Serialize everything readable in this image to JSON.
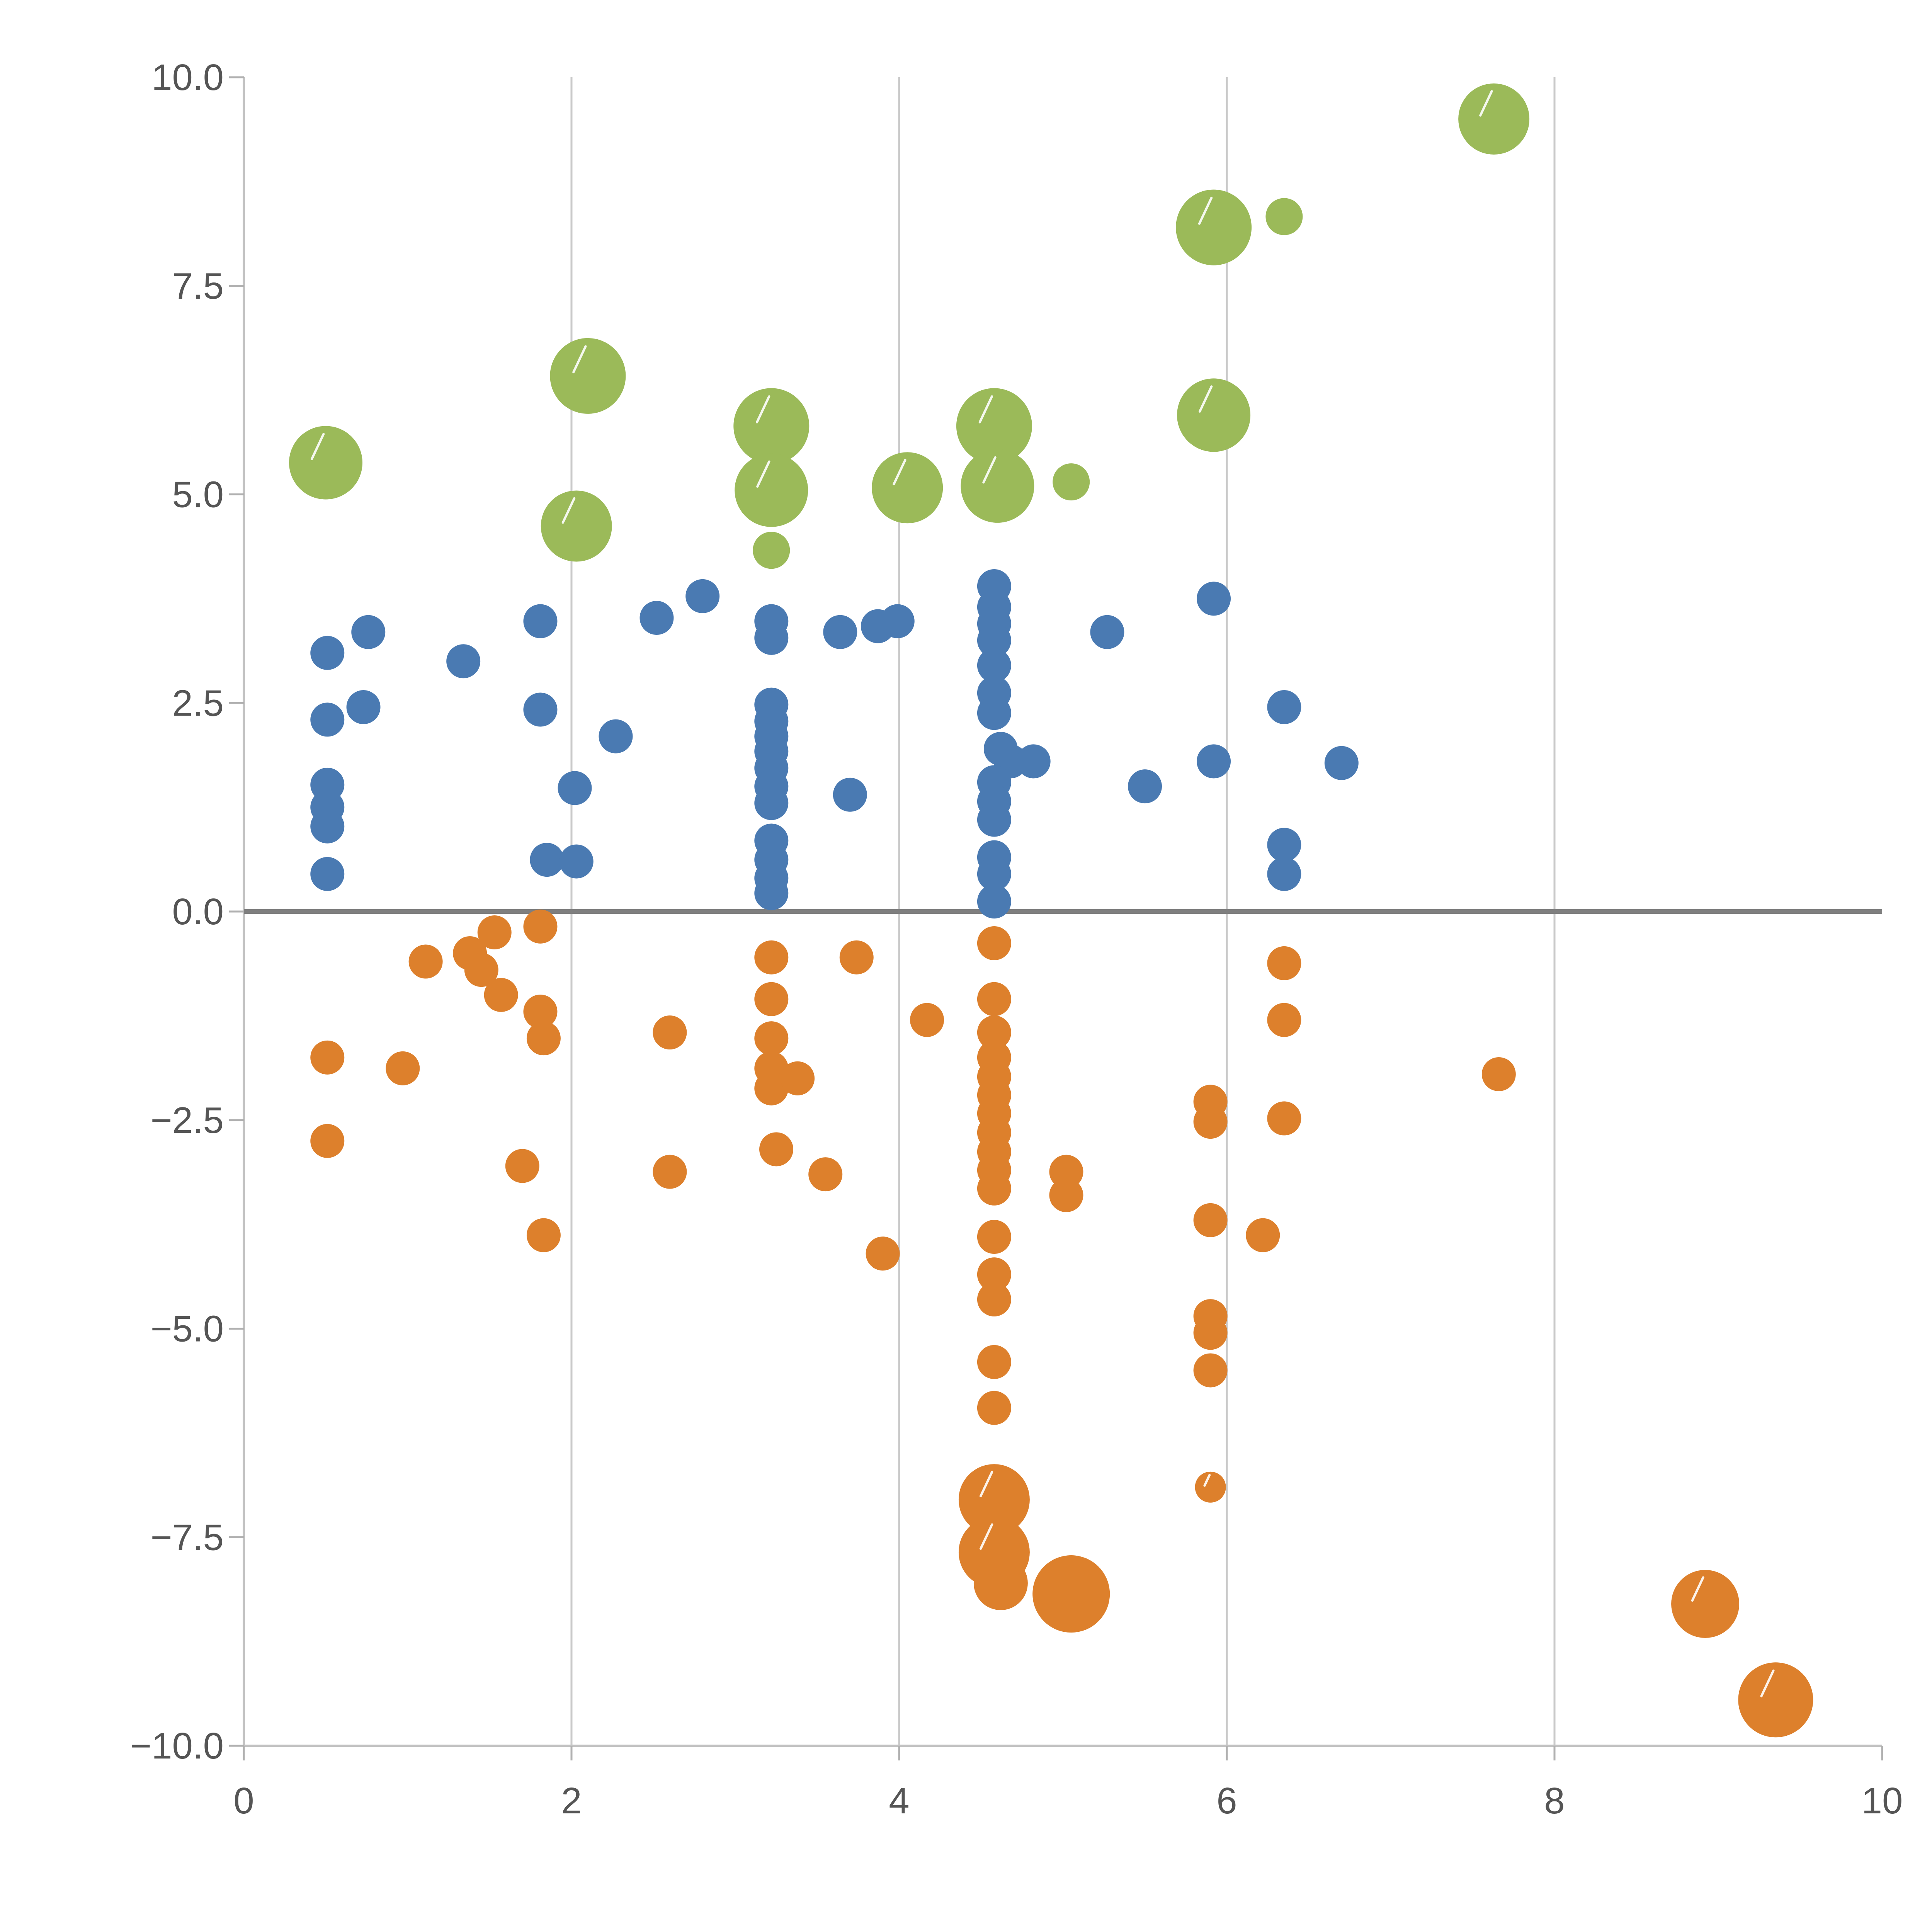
{
  "chart_data": {
    "type": "scatter",
    "title": "",
    "xlabel": "",
    "ylabel": "",
    "xlim": [
      0,
      10
    ],
    "ylim": [
      -10,
      10
    ],
    "grid": "vertical-only",
    "gridline_x_values": [
      2,
      4,
      6,
      8
    ],
    "zero_line": true,
    "legend": "none",
    "x_ticks": [
      0,
      2,
      4,
      6,
      8,
      10
    ],
    "x_tick_labels": [
      "0",
      "2",
      "4",
      "6",
      "8",
      "10"
    ],
    "y_ticks": [
      -10,
      -7.5,
      -5,
      -2.5,
      0,
      2.5,
      5,
      7.5,
      10
    ],
    "y_tick_labels": [
      "−10.0",
      "−7.5",
      "−5.0",
      "−2.5",
      "0.0",
      "2.5",
      "5.0",
      "7.5",
      "10.0"
    ],
    "colors": {
      "grid": "#c9c9c9",
      "spine": "#c2c2c2",
      "tick": "#b0b0b0",
      "zero_line": "#7f7f7f",
      "tick_label": "#555555",
      "highlight_slash": "#ffffff"
    },
    "points_format": "[x, y, radius_px_on_5000_canvas, slash_flag]",
    "series": [
      {
        "name": "green-bubbles",
        "color": "#9bba59",
        "default_radius": 46,
        "points": [
          [
            0.5,
            5.38,
            95,
            1
          ],
          [
            2.1,
            6.42,
            98,
            1
          ],
          [
            2.03,
            4.62,
            92,
            1
          ],
          [
            3.22,
            5.82,
            98,
            1
          ],
          [
            3.22,
            5.05,
            95,
            1
          ],
          [
            3.22,
            4.33,
            48,
            0
          ],
          [
            4.05,
            5.08,
            92,
            1
          ],
          [
            4.58,
            5.82,
            98,
            1
          ],
          [
            4.6,
            5.1,
            95,
            1
          ],
          [
            5.05,
            5.15,
            48,
            0
          ],
          [
            5.92,
            8.2,
            98,
            1
          ],
          [
            6.35,
            8.33,
            48,
            0
          ],
          [
            5.92,
            5.95,
            95,
            1
          ],
          [
            7.63,
            9.5,
            92,
            1
          ]
        ]
      },
      {
        "name": "blue-dots",
        "color": "#4a7ab2",
        "default_radius": 44,
        "points": [
          [
            0.51,
            3.1
          ],
          [
            0.51,
            2.3
          ],
          [
            0.76,
            3.35
          ],
          [
            0.73,
            2.45
          ],
          [
            0.51,
            1.52
          ],
          [
            0.51,
            1.25
          ],
          [
            0.51,
            1.02
          ],
          [
            0.51,
            0.45
          ],
          [
            1.34,
            3.0
          ],
          [
            1.81,
            3.48
          ],
          [
            1.81,
            2.42
          ],
          [
            2.02,
            1.48
          ],
          [
            1.85,
            0.62
          ],
          [
            2.03,
            0.6
          ],
          [
            2.27,
            2.1
          ],
          [
            2.52,
            3.52
          ],
          [
            2.8,
            3.78
          ],
          [
            3.22,
            3.48
          ],
          [
            3.22,
            3.28
          ],
          [
            3.22,
            2.48
          ],
          [
            3.22,
            2.28
          ],
          [
            3.22,
            2.1
          ],
          [
            3.22,
            1.92
          ],
          [
            3.22,
            1.72
          ],
          [
            3.22,
            1.5
          ],
          [
            3.22,
            1.3
          ],
          [
            3.22,
            0.85
          ],
          [
            3.22,
            0.62
          ],
          [
            3.22,
            0.4
          ],
          [
            3.22,
            0.22
          ],
          [
            3.64,
            3.35
          ],
          [
            3.7,
            1.4
          ],
          [
            3.87,
            3.42
          ],
          [
            3.99,
            3.48
          ],
          [
            4.58,
            3.9
          ],
          [
            4.58,
            3.65
          ],
          [
            4.58,
            3.45
          ],
          [
            4.58,
            3.25
          ],
          [
            4.58,
            2.95
          ],
          [
            4.58,
            2.62
          ],
          [
            4.58,
            2.38
          ],
          [
            4.62,
            1.95
          ],
          [
            4.68,
            1.8
          ],
          [
            4.58,
            1.55
          ],
          [
            4.58,
            1.32
          ],
          [
            4.58,
            1.1
          ],
          [
            4.58,
            0.65
          ],
          [
            4.58,
            0.45
          ],
          [
            4.58,
            0.12
          ],
          [
            4.82,
            1.8
          ],
          [
            5.27,
            3.35
          ],
          [
            5.5,
            1.5
          ],
          [
            5.92,
            3.75
          ],
          [
            5.92,
            1.8
          ],
          [
            6.35,
            2.45
          ],
          [
            6.35,
            0.8
          ],
          [
            6.35,
            0.45
          ],
          [
            6.7,
            1.78
          ]
        ]
      },
      {
        "name": "orange-dots",
        "color": "#dd802c",
        "default_radius": 44,
        "points": [
          [
            0.51,
            -1.75
          ],
          [
            0.51,
            -2.75
          ],
          [
            0.97,
            -1.88
          ],
          [
            1.11,
            -0.6
          ],
          [
            1.38,
            -0.5
          ],
          [
            1.45,
            -0.7
          ],
          [
            1.53,
            -0.25
          ],
          [
            1.57,
            -1.0
          ],
          [
            1.81,
            -0.18
          ],
          [
            1.81,
            -1.2
          ],
          [
            1.83,
            -1.52
          ],
          [
            1.7,
            -3.05
          ],
          [
            1.83,
            -3.88
          ],
          [
            2.6,
            -1.45
          ],
          [
            2.6,
            -3.12
          ],
          [
            3.22,
            -0.55
          ],
          [
            3.22,
            -1.05
          ],
          [
            3.22,
            -1.52
          ],
          [
            3.22,
            -1.88
          ],
          [
            3.22,
            -2.12
          ],
          [
            3.38,
            -2.0
          ],
          [
            3.25,
            -2.85
          ],
          [
            3.55,
            -3.15
          ],
          [
            3.74,
            -0.55
          ],
          [
            3.9,
            -4.1
          ],
          [
            4.17,
            -1.3
          ],
          [
            4.58,
            -0.38
          ],
          [
            4.58,
            -1.05
          ],
          [
            4.58,
            -1.45
          ],
          [
            4.58,
            -1.75
          ],
          [
            4.58,
            -1.98
          ],
          [
            4.58,
            -2.2
          ],
          [
            4.58,
            -2.42
          ],
          [
            4.58,
            -2.65
          ],
          [
            4.58,
            -2.88
          ],
          [
            4.58,
            -3.1
          ],
          [
            4.58,
            -3.32
          ],
          [
            4.58,
            -3.9
          ],
          [
            4.58,
            -4.35
          ],
          [
            4.58,
            -4.65
          ],
          [
            4.58,
            -5.4
          ],
          [
            4.58,
            -5.95
          ],
          [
            5.02,
            -3.12
          ],
          [
            5.02,
            -3.4
          ],
          [
            5.9,
            -2.28
          ],
          [
            5.9,
            -2.52
          ],
          [
            5.9,
            -3.7
          ],
          [
            6.22,
            -3.88
          ],
          [
            5.9,
            -4.85
          ],
          [
            5.9,
            -5.05
          ],
          [
            5.9,
            -5.5
          ],
          [
            5.9,
            -6.9,
            40,
            1
          ],
          [
            6.35,
            -0.62
          ],
          [
            6.35,
            -1.3
          ],
          [
            6.35,
            -2.48
          ],
          [
            7.66,
            -1.95
          ],
          [
            4.58,
            -7.05,
            92,
            1
          ],
          [
            4.58,
            -7.68,
            92,
            1
          ],
          [
            4.62,
            -8.05,
            70,
            0
          ],
          [
            5.05,
            -8.18,
            100,
            0
          ],
          [
            8.92,
            -8.3,
            88,
            1
          ],
          [
            9.35,
            -9.45,
            97,
            1
          ]
        ]
      }
    ]
  }
}
